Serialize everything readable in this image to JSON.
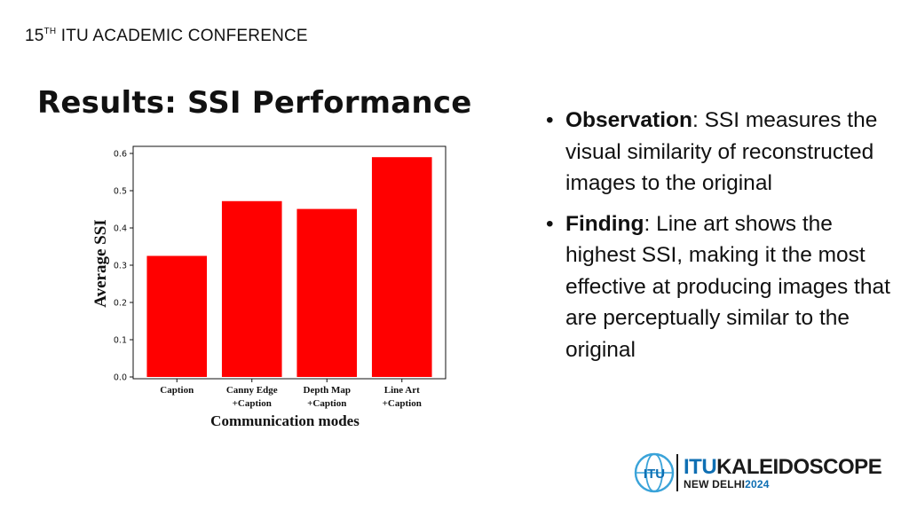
{
  "header": {
    "conference_ordinal": "15",
    "conference_ordinal_suffix": "TH",
    "conference_name": "ITU ACADEMIC CONFERENCE"
  },
  "slide": {
    "title": "Results: SSI Performance"
  },
  "chart_data": {
    "type": "bar",
    "categories": [
      [
        "Caption"
      ],
      [
        "Canny Edge",
        "+Caption"
      ],
      [
        "Depth Map",
        "+Caption"
      ],
      [
        "Line Art",
        "+Caption"
      ]
    ],
    "values": [
      0.325,
      0.472,
      0.451,
      0.59
    ],
    "xlabel": "Communication modes",
    "ylabel": "Average SSI",
    "ylim": [
      0,
      0.6
    ],
    "yticks": [
      "0.0",
      "0.1",
      "0.2",
      "0.3",
      "0.4",
      "0.5",
      "0.6"
    ],
    "bar_color": "#ff0000",
    "grid": false,
    "legend": "none"
  },
  "bullets": [
    {
      "term": "Observation",
      "text": ": SSI measures the visual similarity of reconstructed images to the original"
    },
    {
      "term": "Finding",
      "text": ": Line art shows the highest SSI, making it the most effective at producing images that are perceptually similar to the original"
    }
  ],
  "bullet_symbol": "•",
  "logo": {
    "itu": "ITU",
    "kaleidoscope": "KALEIDOSCOPE",
    "city": "NEW DELHI",
    "year": "2024",
    "emblem_text": "ITU",
    "brand_color": "#0f6fb3",
    "accent_color": "#3aa3d9"
  },
  "icons": {
    "emblem": "itu-globe-icon"
  }
}
